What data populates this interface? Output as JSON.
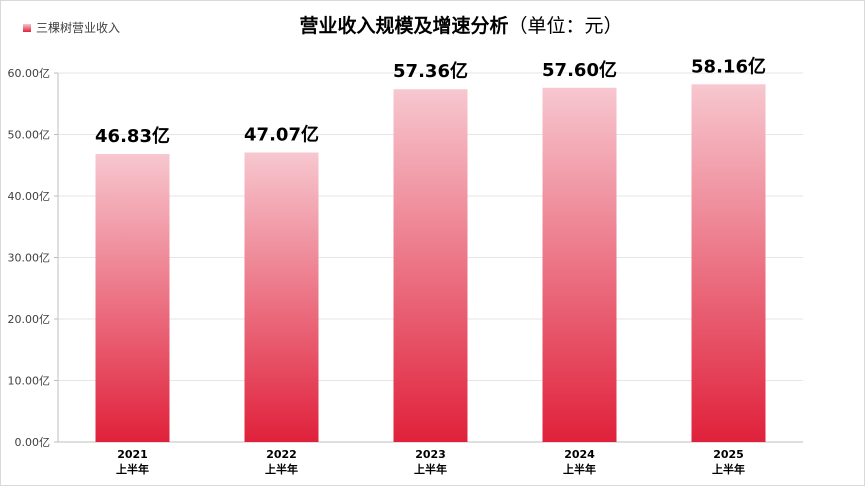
{
  "chart_data": {
    "type": "bar",
    "title": "营业收入规模及增速分析",
    "title_unit": "（单位：元）",
    "legend": {
      "label": "三棵树营业收入",
      "placement": "top-left"
    },
    "categories": [
      {
        "year": "2021",
        "period": "上半年"
      },
      {
        "year": "2022",
        "period": "上半年"
      },
      {
        "year": "2023",
        "period": "上半年"
      },
      {
        "year": "2024",
        "period": "上半年"
      },
      {
        "year": "2025",
        "period": "上半年"
      }
    ],
    "values": [
      46.83,
      47.07,
      57.36,
      57.6,
      58.16
    ],
    "data_labels": [
      "46.83亿",
      "47.07亿",
      "57.36亿",
      "57.60亿",
      "58.16亿"
    ],
    "yticks": [
      "0.00亿",
      "10.00亿",
      "20.00亿",
      "30.00亿",
      "40.00亿",
      "50.00亿",
      "60.00亿"
    ],
    "ylim": [
      0,
      60
    ],
    "grid": true,
    "colors": {
      "bar_top": "#f7c7cf",
      "bar_bottom": "#e0213b",
      "grid": "#e6e6e6",
      "axis": "#bfbfbf"
    }
  }
}
